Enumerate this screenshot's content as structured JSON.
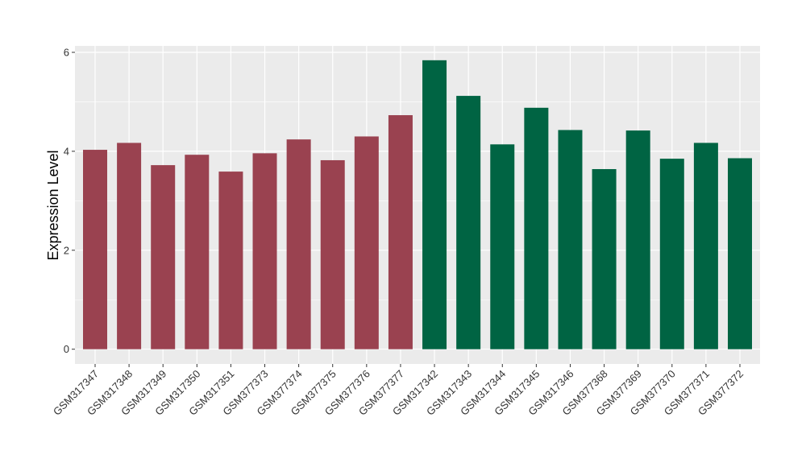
{
  "chart_data": {
    "type": "bar",
    "title": "",
    "xlabel": "",
    "ylabel": "Expression Level",
    "ylim": [
      -0.3,
      6.13
    ],
    "yticks": [
      0,
      2,
      4,
      6
    ],
    "grid": true,
    "categories": [
      "GSM317347",
      "GSM317348",
      "GSM317349",
      "GSM317350",
      "GSM317351",
      "GSM377373",
      "GSM377374",
      "GSM377375",
      "GSM377376",
      "GSM377377",
      "GSM317342",
      "GSM317343",
      "GSM317344",
      "GSM317345",
      "GSM317346",
      "GSM377368",
      "GSM377369",
      "GSM377370",
      "GSM377371",
      "GSM377372"
    ],
    "values": [
      4.03,
      4.17,
      3.72,
      3.93,
      3.59,
      3.96,
      4.24,
      3.82,
      4.3,
      4.73,
      5.84,
      5.12,
      4.14,
      4.88,
      4.43,
      3.64,
      4.42,
      3.85,
      4.17,
      3.86
    ],
    "groups": [
      0,
      0,
      0,
      0,
      0,
      0,
      0,
      0,
      0,
      0,
      1,
      1,
      1,
      1,
      1,
      1,
      1,
      1,
      1,
      1
    ],
    "colors": [
      "#9a4250",
      "#006443"
    ]
  }
}
